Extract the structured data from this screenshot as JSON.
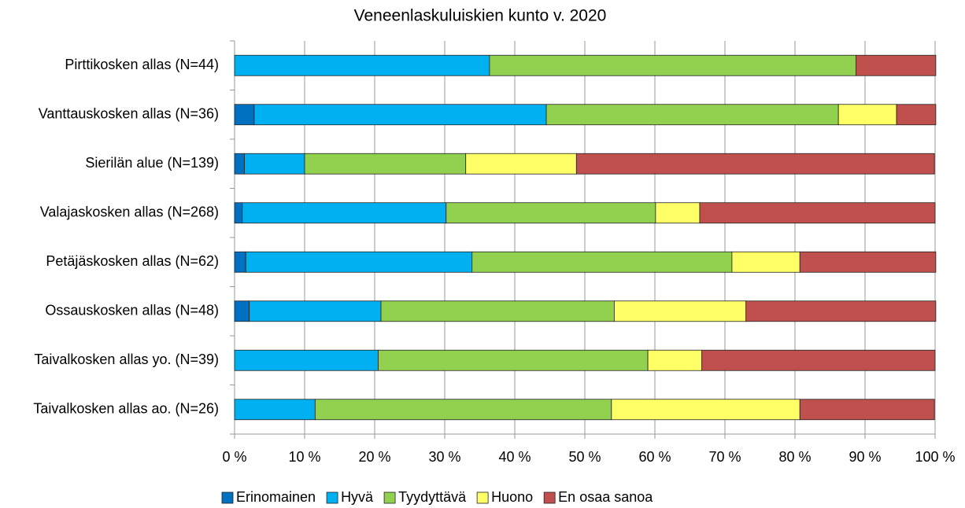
{
  "chart_data": {
    "type": "stacked-barh",
    "title": "Veneenlaskuluiskien kunto v. 2020",
    "categories": [
      "Pirttikosken allas (N=44)",
      "Vanttauskosken allas (N=36)",
      "Sierilän alue (N=139)",
      "Valajaskosken allas (N=268)",
      "Petäjäskosken allas (N=62)",
      "Ossauskosken allas (N=48)",
      "Taivalkosken allas yo. (N=39)",
      "Taivalkosken allas ao. (N=26)"
    ],
    "series": [
      {
        "name": "Erinomainen",
        "color": "#0070c0",
        "values": [
          0,
          2.8,
          1.4,
          1.1,
          1.6,
          2.1,
          0,
          0
        ]
      },
      {
        "name": "Hyvä",
        "color": "#00b0f0",
        "values": [
          36.4,
          41.7,
          8.6,
          29.1,
          32.3,
          18.8,
          20.5,
          11.5
        ]
      },
      {
        "name": "Tyydyttävä",
        "color": "#92d050",
        "values": [
          52.3,
          41.7,
          23.0,
          29.9,
          37.1,
          33.3,
          38.5,
          42.3
        ]
      },
      {
        "name": "Huono",
        "color": "#ffff66",
        "values": [
          0,
          8.3,
          15.8,
          6.3,
          9.7,
          18.8,
          7.7,
          26.9
        ]
      },
      {
        "name": "En osaa sanoa",
        "color": "#c0504d",
        "values": [
          11.4,
          5.6,
          51.1,
          33.6,
          19.4,
          27.1,
          33.3,
          19.2
        ]
      }
    ],
    "xlim": [
      0,
      100
    ],
    "xticks": [
      {
        "value": 0,
        "label": "0 %"
      },
      {
        "value": 10,
        "label": "10 %"
      },
      {
        "value": 20,
        "label": "20 %"
      },
      {
        "value": 30,
        "label": "30 %"
      },
      {
        "value": 40,
        "label": "40 %"
      },
      {
        "value": 50,
        "label": "50 %"
      },
      {
        "value": 60,
        "label": "60 %"
      },
      {
        "value": 70,
        "label": "70 %"
      },
      {
        "value": 80,
        "label": "80 %"
      },
      {
        "value": 90,
        "label": "90 %"
      },
      {
        "value": 100,
        "label": "100 %"
      }
    ],
    "grid": true,
    "legend": "bottom"
  }
}
